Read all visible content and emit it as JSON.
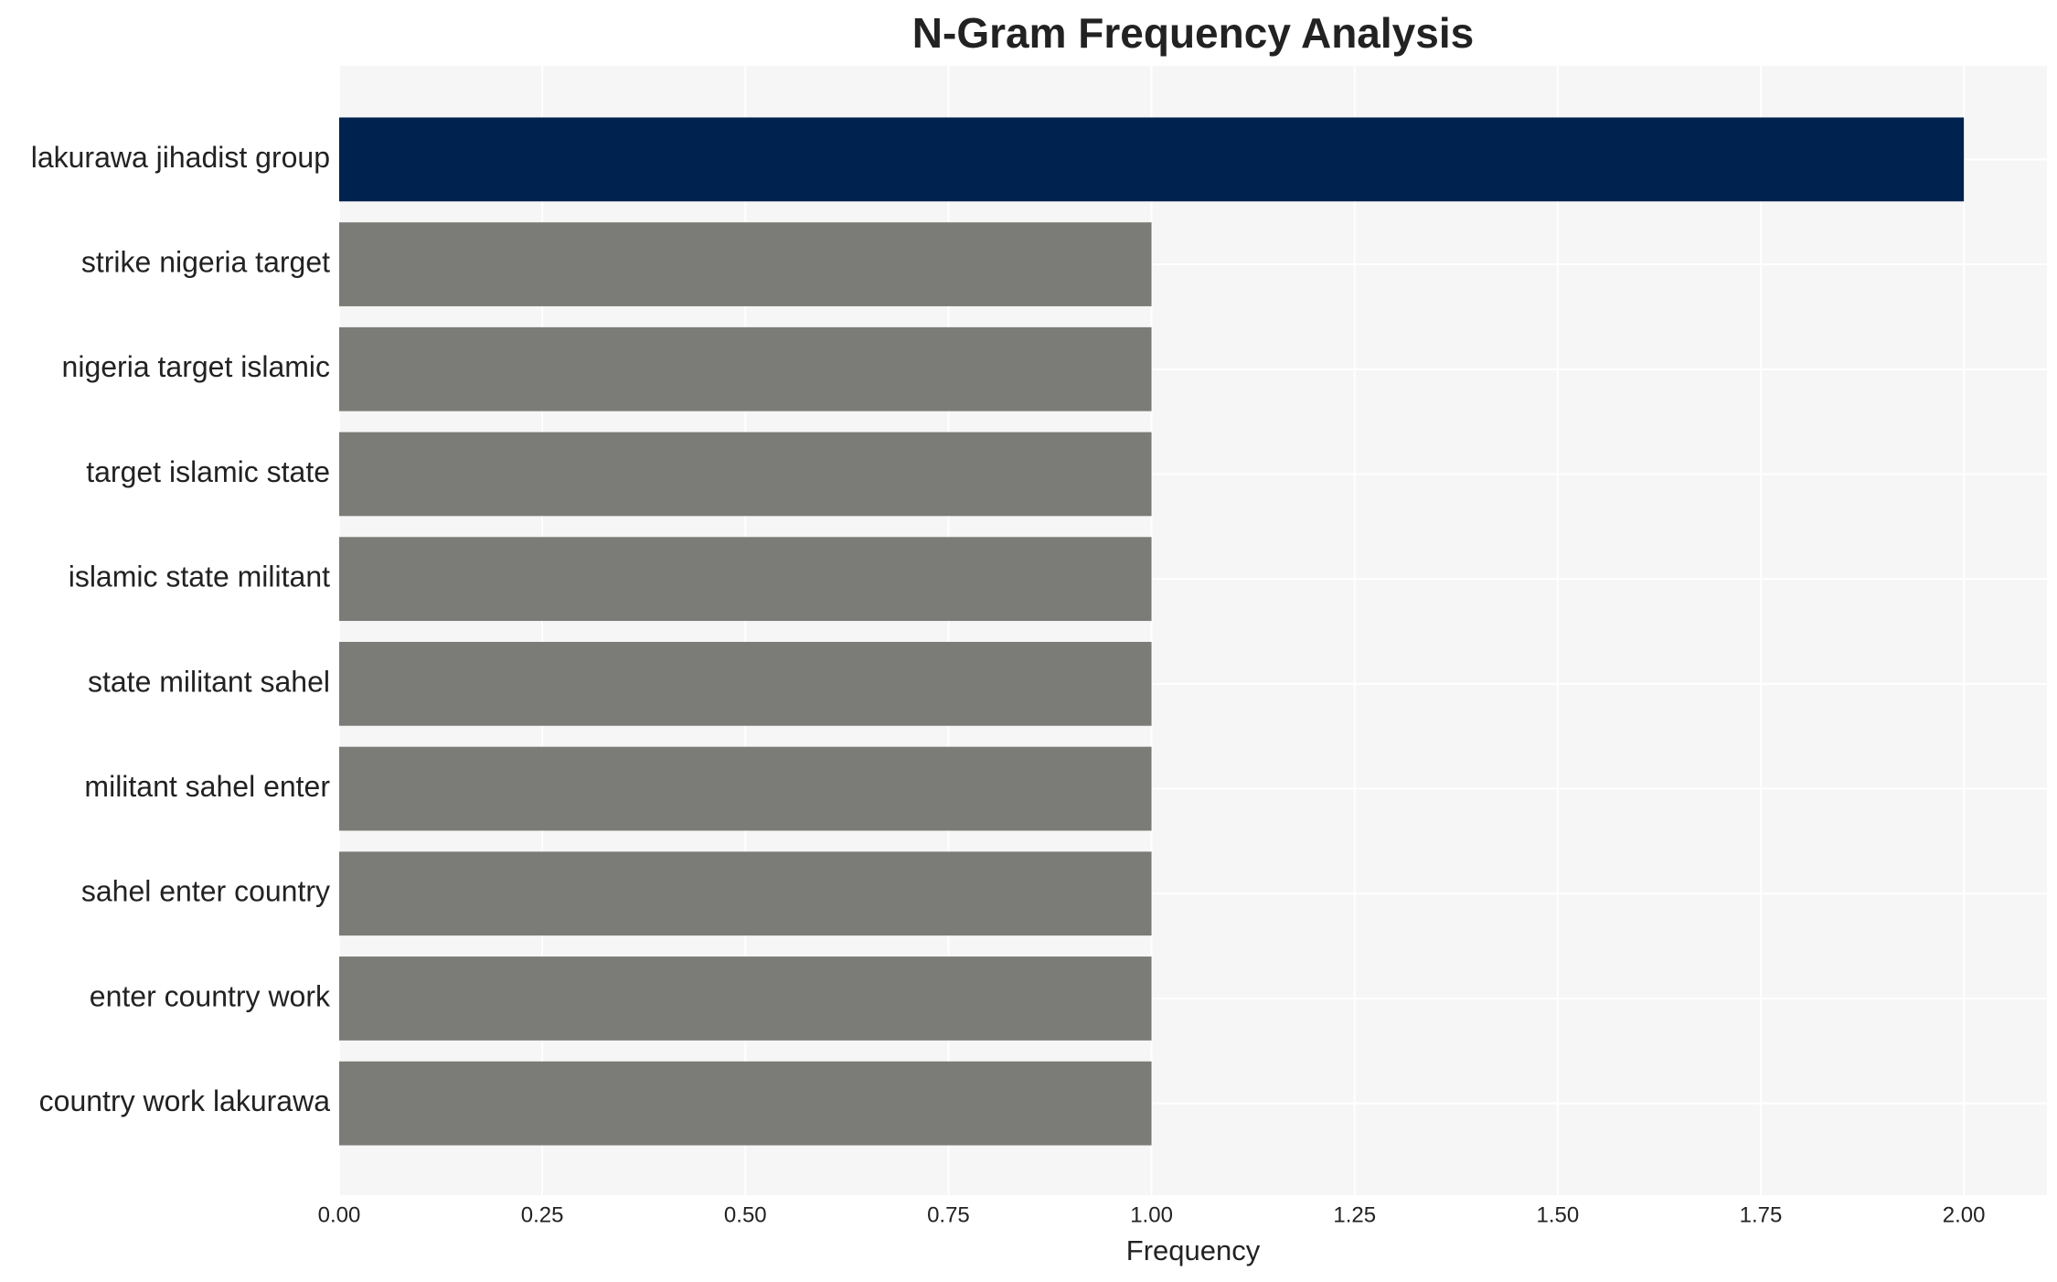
{
  "chart_data": {
    "type": "hbar",
    "title": "N-Gram Frequency Analysis",
    "x_label": "Frequency",
    "categories": [
      "lakurawa jihadist group",
      "strike nigeria target",
      "nigeria target islamic",
      "target islamic state",
      "islamic state militant",
      "state militant sahel",
      "militant sahel enter",
      "sahel enter country",
      "enter country work",
      "country work lakurawa"
    ],
    "values": [
      2,
      1,
      1,
      1,
      1,
      1,
      1,
      1,
      1,
      1
    ],
    "colors": [
      "#00224e",
      "#7b7b77",
      "#7b7b77",
      "#7b7b77",
      "#7b7b77",
      "#7b7b77",
      "#7b7b77",
      "#7b7b77",
      "#7b7b77",
      "#7b7b77"
    ],
    "xlim": [
      0,
      2.1
    ],
    "xticks": [
      {
        "value": 0,
        "label": "0.00"
      },
      {
        "value": 0.25,
        "label": "0.25"
      },
      {
        "value": 0.5,
        "label": "0.50"
      },
      {
        "value": 0.75,
        "label": "0.75"
      },
      {
        "value": 1,
        "label": "1.00"
      },
      {
        "value": 1.25,
        "label": "1.25"
      },
      {
        "value": 1.5,
        "label": "1.50"
      },
      {
        "value": 1.75,
        "label": "1.75"
      },
      {
        "value": 2,
        "label": "2.00"
      }
    ],
    "grid": true
  }
}
